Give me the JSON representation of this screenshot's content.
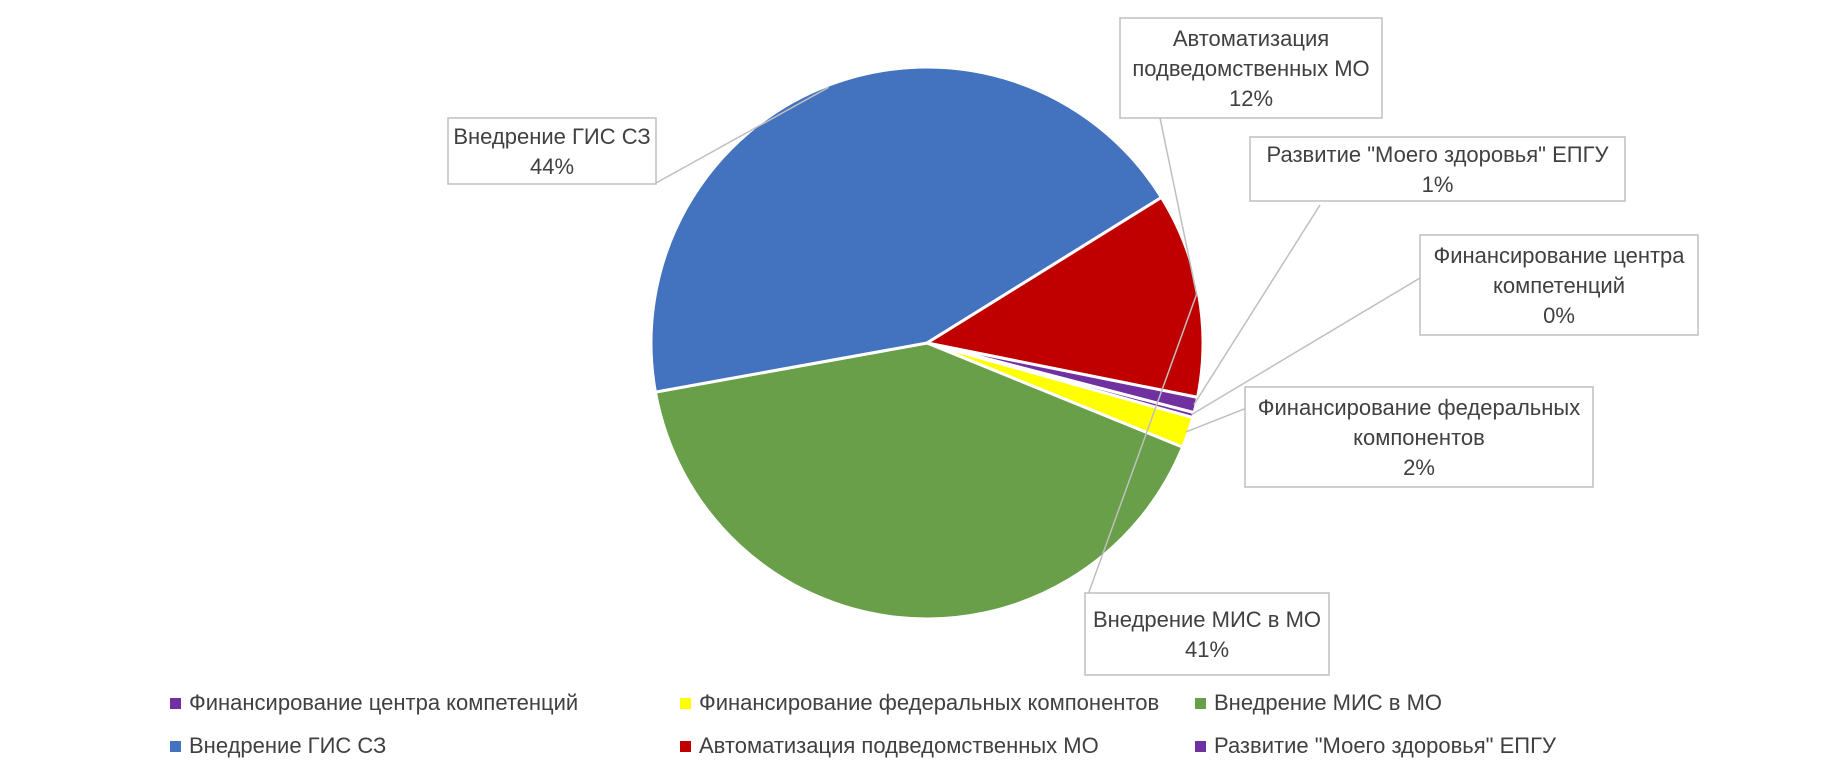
{
  "chart_data": {
    "type": "pie",
    "title": "",
    "slices": [
      {
        "label": "Финансирование центра компетенций",
        "value": 0.3,
        "value_label": "0%",
        "color": "#7030A0"
      },
      {
        "label": "Финансирование федеральных компонентов",
        "value": 1.8,
        "value_label": "2%",
        "color": "#FFFF00"
      },
      {
        "label": "Внедрение МИС в МО",
        "value": 41,
        "value_label": "41%",
        "color": "#6A9F4A"
      },
      {
        "label": "Внедрение ГИС СЗ",
        "value": 44,
        "value_label": "44%",
        "color": "#4372BE"
      },
      {
        "label": "Автоматизация подведомственных МО",
        "value": 12,
        "value_label": "12%",
        "color": "#C00000"
      },
      {
        "label": "Развитие \"Моего здоровья\" ЕПГУ",
        "value": 0.9,
        "value_label": "1%",
        "color": "#7030A0"
      }
    ],
    "data_labels": [
      {
        "lines": [
          "Автоматизация",
          "подведомственных МО",
          "12%"
        ]
      },
      {
        "lines": [
          "Развитие \"Моего здоровья\" ЕПГУ",
          "1%"
        ]
      },
      {
        "lines": [
          "Финансирование центра",
          "компетенций",
          "0%"
        ]
      },
      {
        "lines": [
          "Финансирование федеральных",
          "компонентов",
          "2%"
        ]
      },
      {
        "lines": [
          "Внедрение МИС в МО",
          "41%"
        ]
      },
      {
        "lines": [
          "Внедрение ГИС СЗ",
          "44%"
        ]
      }
    ],
    "legend_position": "bottom",
    "legend": [
      "Финансирование центра компетенций",
      "Финансирование федеральных компонентов",
      "Внедрение МИС в МО",
      "Внедрение ГИС СЗ",
      "Автоматизация подведомственных МО",
      "Развитие \"Моего здоровья\" ЕПГУ"
    ]
  }
}
